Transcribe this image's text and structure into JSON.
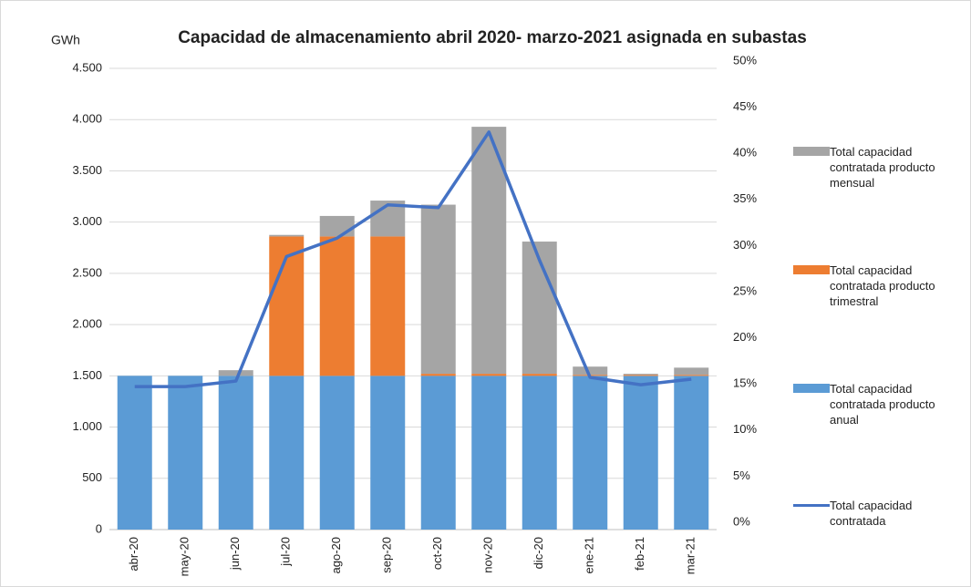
{
  "chart_data": {
    "type": "bar",
    "stacked": true,
    "title": "Capacidad de almacenamiento abril 2020- marzo-2021 asignada en subastas",
    "y_label": "GWh",
    "categories": [
      "abr-20",
      "may-20",
      "jun-20",
      "jul-20",
      "ago-20",
      "sep-20",
      "oct-20",
      "nov-20",
      "dic-20",
      "ene-21",
      "feb-21",
      "mar-21"
    ],
    "series": [
      {
        "name": "Total capacidad contratada producto anual",
        "color": "#5b9bd5",
        "values": [
          1500,
          1500,
          1500,
          1500,
          1500,
          1500,
          1500,
          1500,
          1500,
          1500,
          1500,
          1500
        ]
      },
      {
        "name": "Total capacidad contratada producto trimestral",
        "color": "#ed7d31",
        "values": [
          0,
          0,
          0,
          1360,
          1360,
          1360,
          20,
          20,
          20,
          10,
          10,
          10
        ]
      },
      {
        "name": "Total capacidad contratada producto mensual",
        "color": "#a5a5a5",
        "values": [
          0,
          0,
          55,
          15,
          200,
          350,
          1650,
          2410,
          1290,
          80,
          10,
          70
        ]
      },
      {
        "name": "Total capacidad contratada",
        "color": "#4472c4",
        "type": "line",
        "axis": "y2",
        "values": [
          15.5,
          15.5,
          16.1,
          29.6,
          31.6,
          35.2,
          34.9,
          43.1,
          29.2,
          16.5,
          15.7,
          16.3
        ]
      }
    ],
    "legend_order": [
      2,
      1,
      0,
      3
    ],
    "ylim": [
      0,
      4500
    ],
    "yticks": [
      0,
      500,
      {
        "value": 1000,
        "label": "1.000"
      },
      {
        "value": 1500,
        "label": "1.500"
      },
      {
        "value": 2000,
        "label": "2.000"
      },
      {
        "value": 2500,
        "label": "2.500"
      },
      {
        "value": 3000,
        "label": "3.000"
      },
      {
        "value": 3500,
        "label": "3.500"
      },
      {
        "value": 4000,
        "label": "4.000"
      },
      {
        "value": 4500,
        "label": "4.500"
      }
    ],
    "y2lim": [
      0,
      50
    ],
    "y2ticks": [
      {
        "value": 0,
        "label": "0%"
      },
      {
        "value": 5,
        "label": "5%"
      },
      {
        "value": 10,
        "label": "10%"
      },
      {
        "value": 15,
        "label": "15%"
      },
      {
        "value": 20,
        "label": "20%"
      },
      {
        "value": 25,
        "label": "25%"
      },
      {
        "value": 30,
        "label": "30%"
      },
      {
        "value": 35,
        "label": "35%"
      },
      {
        "value": 40,
        "label": "40%"
      },
      {
        "value": 45,
        "label": "45%"
      },
      {
        "value": 50,
        "label": "50%"
      }
    ],
    "grid": true,
    "legend": "right"
  }
}
